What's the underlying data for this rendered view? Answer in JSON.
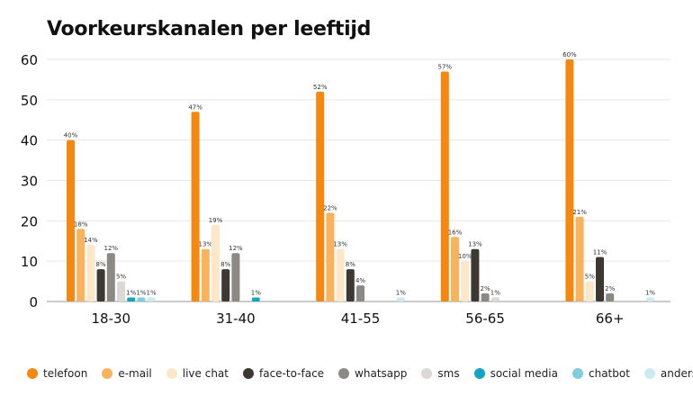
{
  "chart_data": {
    "type": "bar",
    "title": "Voorkeurskanalen per leeftijd",
    "xlabel": "",
    "ylabel": "",
    "ylim": [
      0,
      60
    ],
    "yticks": [
      0,
      10,
      20,
      30,
      40,
      50,
      60
    ],
    "grid": true,
    "legend_position": "bottom",
    "categories": [
      "18-30",
      "31-40",
      "41-55",
      "56-65",
      "66+"
    ],
    "series": [
      {
        "name": "telefoon",
        "color": "#F7880F",
        "values": [
          40,
          47,
          52,
          57,
          60
        ],
        "labels": [
          "40%",
          "47%",
          "52%",
          "57%",
          "60%"
        ]
      },
      {
        "name": "e-mail",
        "color": "#FBB25C",
        "values": [
          18,
          13,
          22,
          16,
          21
        ],
        "labels": [
          "18%",
          "13%",
          "22%",
          "16%",
          "21%"
        ]
      },
      {
        "name": "live chat",
        "color": "#FCE8C8",
        "values": [
          14,
          19,
          13,
          10,
          5
        ],
        "labels": [
          "14%",
          "19%",
          "13%",
          "10%",
          "5%"
        ]
      },
      {
        "name": "face-to-face",
        "color": "#3E3833",
        "values": [
          8,
          8,
          8,
          13,
          11
        ],
        "labels": [
          "8%",
          "8%",
          "8%",
          "13%",
          "11%"
        ]
      },
      {
        "name": "whatsapp",
        "color": "#8C8884",
        "values": [
          12,
          12,
          4,
          2,
          2
        ],
        "labels": [
          "12%",
          "12%",
          "4%",
          "2%",
          "2%"
        ]
      },
      {
        "name": "sms",
        "color": "#DBD8D5",
        "values": [
          5,
          0,
          0,
          1,
          0
        ],
        "labels": [
          "5%",
          "",
          "",
          "1%",
          ""
        ]
      },
      {
        "name": "social media",
        "color": "#12A4C2",
        "values": [
          1,
          1,
          0,
          0,
          0
        ],
        "labels": [
          "1%",
          "1%",
          "",
          "",
          ""
        ]
      },
      {
        "name": "chatbot",
        "color": "#7FCEE0",
        "values": [
          1,
          0,
          0,
          0,
          0
        ],
        "labels": [
          "1%",
          "",
          "",
          "",
          ""
        ]
      },
      {
        "name": "anders",
        "color": "#CBEAF1",
        "values": [
          1,
          0,
          1,
          0,
          1
        ],
        "labels": [
          "1%",
          "",
          "1%",
          "",
          "1%"
        ]
      }
    ]
  }
}
